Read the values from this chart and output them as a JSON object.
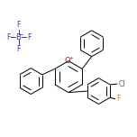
{
  "bg_color": "#ffffff",
  "bond_color": "#000000",
  "figsize": [
    1.52,
    1.52
  ],
  "dpi": 100,
  "o_color": "#dd0000",
  "cl_color": "#228822",
  "f_color": "#dd7700",
  "bf4_color": "#3333bb",
  "label_fontsize": 5.5,
  "lw": 0.7,
  "xlim": [
    0.0,
    1.0
  ],
  "ylim": [
    0.0,
    1.0
  ]
}
